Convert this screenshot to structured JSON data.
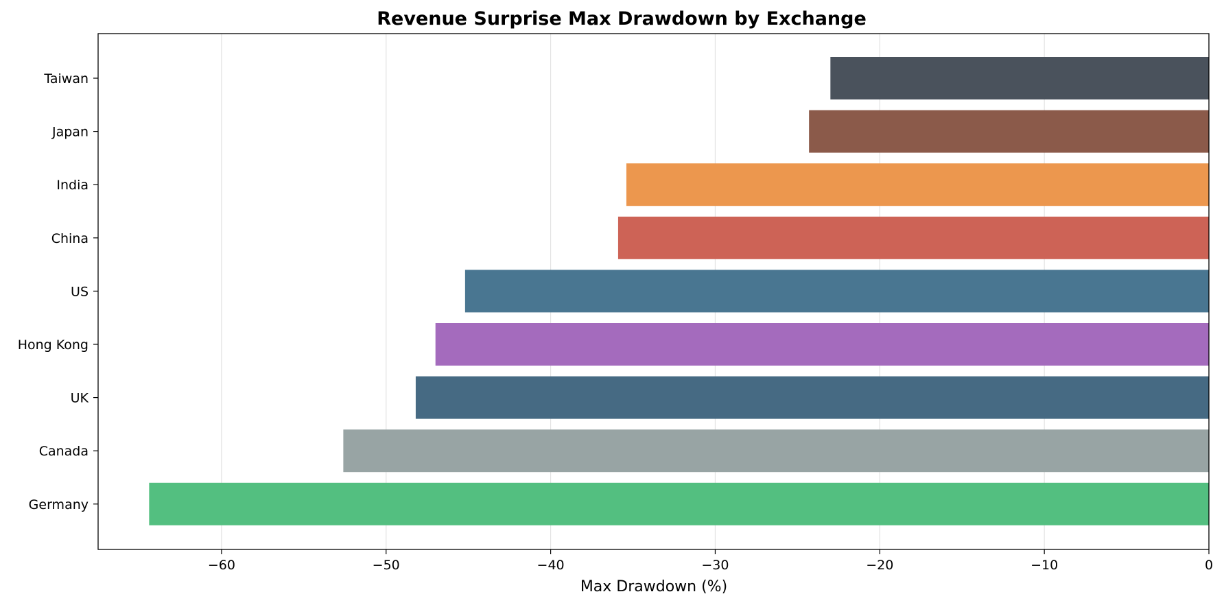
{
  "chart_data": {
    "type": "bar",
    "orientation": "horizontal",
    "title": "Revenue Surprise Max Drawdown by Exchange",
    "xlabel": "Max Drawdown (%)",
    "ylabel": "",
    "categories": [
      "Taiwan",
      "Japan",
      "India",
      "China",
      "US",
      "Hong Kong",
      "UK",
      "Canada",
      "Germany"
    ],
    "values": [
      -23.0,
      -24.3,
      -35.4,
      -35.9,
      -45.2,
      -47.0,
      -48.2,
      -52.6,
      -64.4
    ],
    "colors": [
      "#4a525c",
      "#8b5a4a",
      "#ec974e",
      "#cd6356",
      "#497691",
      "#a46bbd",
      "#466a83",
      "#98a4a4",
      "#53bf80"
    ],
    "xlim": [
      -67.5,
      0
    ],
    "xticks": [
      -60,
      -50,
      -40,
      -30,
      -20,
      -10,
      0
    ],
    "xtick_labels": [
      "−60",
      "−50",
      "−40",
      "−30",
      "−20",
      "−10",
      "0"
    ],
    "grid": "x",
    "legend": "none"
  }
}
